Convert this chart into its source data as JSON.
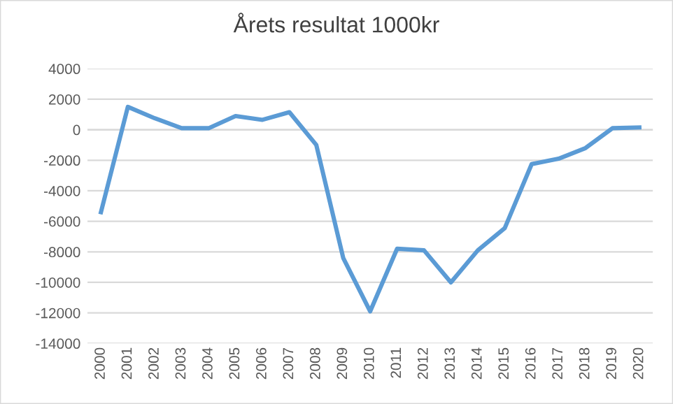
{
  "chart_data": {
    "type": "line",
    "title": "Årets resultat 1000kr",
    "categories": [
      "2000",
      "2001",
      "2002",
      "2003",
      "2004",
      "2005",
      "2006",
      "2007",
      "2008",
      "2009",
      "2010",
      "2011",
      "2012",
      "2013",
      "2014",
      "2015",
      "2016",
      "2017",
      "2018",
      "2019",
      "2020"
    ],
    "series": [
      {
        "color": "#5b9bd5",
        "values": [
          -5400,
          1500,
          750,
          100,
          100,
          900,
          650,
          1150,
          -1000,
          -8400,
          -11900,
          -7800,
          -7900,
          -10000,
          -7900,
          -6450,
          -2250,
          -1900,
          -1200,
          100,
          150
        ]
      }
    ],
    "ylim": [
      -14000,
      4000
    ],
    "yticks": [
      -14000,
      -12000,
      -10000,
      -8000,
      -6000,
      -4000,
      -2000,
      0,
      2000,
      4000
    ],
    "grid": "y",
    "legend": false,
    "marker": "none",
    "line_style": "solid"
  }
}
